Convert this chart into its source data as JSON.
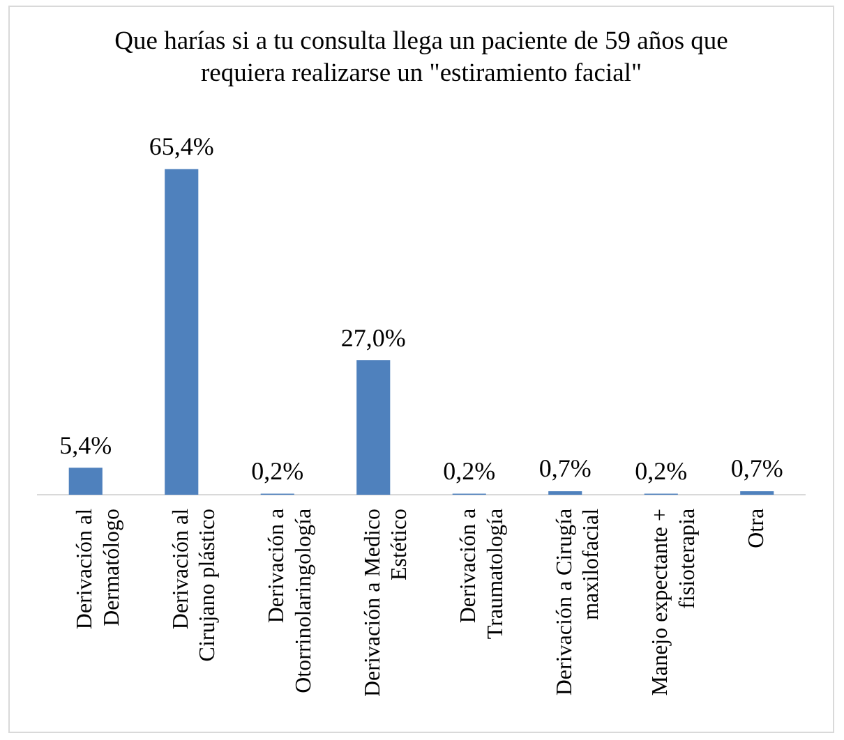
{
  "chart_data": {
    "type": "bar",
    "title": "Que harías si a tu consulta llega un paciente de 59 años que requiera realizarse un \"estiramiento facial\"",
    "categories": [
      "Derivación al Dermatólogo",
      "Derivación al Cirujano plástico",
      "Derivación a Otorrinolaringología",
      "Derivación a Medico Estético",
      "Derivación a Traumatología",
      "Derivación a Cirugía maxilofacial",
      "Manejo expectante + fisioterapia",
      "Otra"
    ],
    "values": [
      5.4,
      65.4,
      0.2,
      27.0,
      0.2,
      0.7,
      0.2,
      0.7
    ],
    "value_labels": [
      "5,4%",
      "65,4%",
      "0,2%",
      "27,0%",
      "0,2%",
      "0,7%",
      "0,2%",
      "0,7%"
    ],
    "color": "#4f81bd",
    "grid": false,
    "legend": false
  }
}
